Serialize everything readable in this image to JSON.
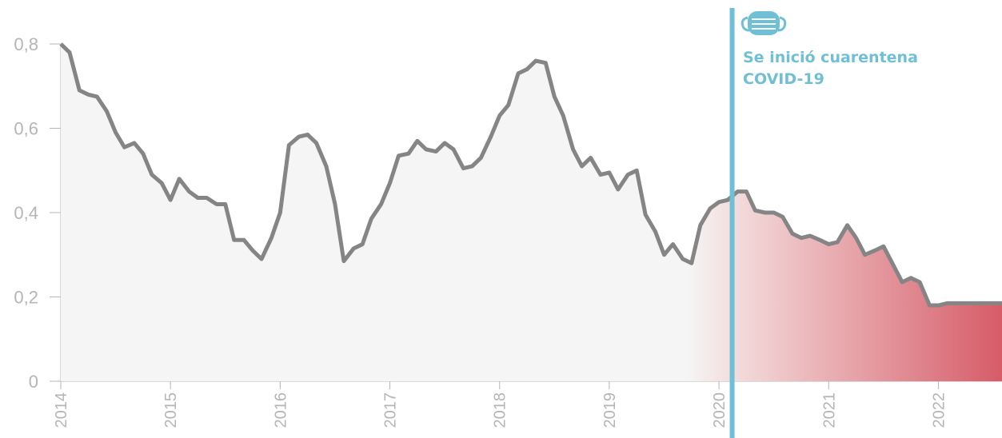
{
  "chart_data": {
    "type": "area",
    "x_start_year": 2014,
    "x_end_year": 2022.58,
    "ylim": [
      0,
      0.8
    ],
    "yticks": [
      {
        "value": 0,
        "label": "0"
      },
      {
        "value": 0.2,
        "label": "0,2"
      },
      {
        "value": 0.4,
        "label": "0,4"
      },
      {
        "value": 0.6,
        "label": "0,6"
      },
      {
        "value": 0.8,
        "label": "0,8"
      }
    ],
    "xticks": [
      {
        "value": 2014,
        "label": "2014"
      },
      {
        "value": 2015,
        "label": "2015"
      },
      {
        "value": 2016,
        "label": "2016"
      },
      {
        "value": 2017,
        "label": "2017"
      },
      {
        "value": 2018,
        "label": "2018"
      },
      {
        "value": 2019,
        "label": "2019"
      },
      {
        "value": 2020,
        "label": "2020"
      },
      {
        "value": 2021,
        "label": "2021"
      },
      {
        "value": 2022,
        "label": "2022"
      }
    ],
    "series": [
      {
        "x": [
          2014.0,
          2014.08,
          2014.17,
          2014.25,
          2014.33,
          2014.42,
          2014.5,
          2014.58,
          2014.67,
          2014.75,
          2014.83,
          2014.92,
          2015.0,
          2015.08,
          2015.17,
          2015.25,
          2015.33,
          2015.42,
          2015.5,
          2015.58,
          2015.67,
          2015.75,
          2015.83,
          2015.92,
          2016.0,
          2016.08,
          2016.17,
          2016.25,
          2016.33,
          2016.42,
          2016.5,
          2016.58,
          2016.67,
          2016.75,
          2016.83,
          2016.92,
          2017.0,
          2017.08,
          2017.17,
          2017.25,
          2017.33,
          2017.42,
          2017.5,
          2017.58,
          2017.67,
          2017.75,
          2017.83,
          2017.92,
          2018.0,
          2018.08,
          2018.17,
          2018.25,
          2018.33,
          2018.42,
          2018.5,
          2018.58,
          2018.67,
          2018.75,
          2018.83,
          2018.92,
          2019.0,
          2019.08,
          2019.17,
          2019.25,
          2019.33,
          2019.42,
          2019.5,
          2019.58,
          2019.67,
          2019.75,
          2019.83,
          2019.92,
          2020.0,
          2020.08,
          2020.17,
          2020.25,
          2020.33,
          2020.42,
          2020.5,
          2020.58,
          2020.67,
          2020.75,
          2020.83,
          2020.92,
          2021.0,
          2021.08,
          2021.17,
          2021.25,
          2021.33,
          2021.42,
          2021.5,
          2021.58,
          2021.67,
          2021.75,
          2021.83,
          2021.92,
          2022.0,
          2022.08,
          2022.17,
          2022.25,
          2022.33,
          2022.42,
          2022.5,
          2022.58
        ],
        "values": [
          0.8,
          0.78,
          0.69,
          0.68,
          0.675,
          0.64,
          0.59,
          0.555,
          0.565,
          0.54,
          0.49,
          0.47,
          0.43,
          0.48,
          0.45,
          0.435,
          0.435,
          0.42,
          0.42,
          0.335,
          0.335,
          0.31,
          0.29,
          0.34,
          0.4,
          0.56,
          0.58,
          0.585,
          0.565,
          0.51,
          0.42,
          0.285,
          0.315,
          0.325,
          0.385,
          0.42,
          0.47,
          0.535,
          0.54,
          0.57,
          0.55,
          0.545,
          0.565,
          0.55,
          0.505,
          0.51,
          0.53,
          0.58,
          0.63,
          0.655,
          0.73,
          0.74,
          0.76,
          0.755,
          0.675,
          0.63,
          0.55,
          0.51,
          0.53,
          0.49,
          0.495,
          0.455,
          0.49,
          0.5,
          0.395,
          0.355,
          0.3,
          0.325,
          0.29,
          0.28,
          0.37,
          0.41,
          0.425,
          0.43,
          0.45,
          0.45,
          0.405,
          0.4,
          0.4,
          0.39,
          0.35,
          0.34,
          0.345,
          0.335,
          0.325,
          0.33,
          0.37,
          0.34,
          0.3,
          0.31,
          0.32,
          0.28,
          0.235,
          0.245,
          0.235,
          0.18,
          0.18,
          0.185,
          0.185,
          0.185,
          0.185,
          0.185,
          0.185,
          0.185
        ]
      }
    ],
    "event": {
      "x": 2020.12,
      "label_lines": [
        "Se inició cuarentena",
        "COVID-19"
      ],
      "icon": "face-mask-icon"
    }
  },
  "colors": {
    "line": "#858585",
    "fill_pre": "#f5f5f5",
    "fill_post": "#d65c68",
    "event": "#6fbfd6",
    "tick": "#b5b5b5"
  }
}
